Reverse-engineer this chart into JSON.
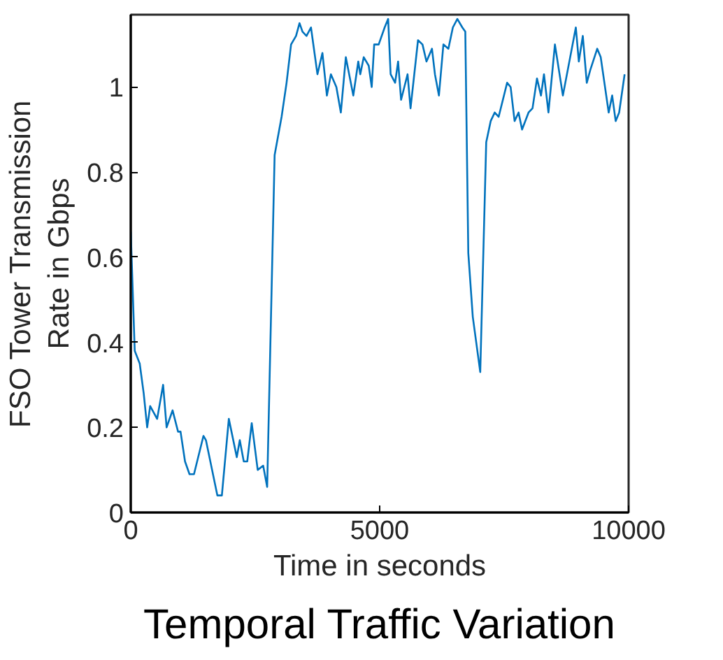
{
  "chart_data": {
    "type": "line",
    "title": "Temporal Traffic Variation",
    "xlabel": "Time in seconds",
    "ylabel": "FSO Tower Transmission Rate in Gbps",
    "x": [
      0,
      80,
      180,
      260,
      330,
      390,
      530,
      650,
      720,
      840,
      950,
      1000,
      1090,
      1180,
      1270,
      1460,
      1510,
      1740,
      1830,
      1970,
      2130,
      2190,
      2270,
      2340,
      2430,
      2550,
      2660,
      2740,
      2890,
      3030,
      3130,
      3220,
      3320,
      3390,
      3450,
      3530,
      3620,
      3750,
      3850,
      3940,
      4020,
      4130,
      4220,
      4320,
      4470,
      4570,
      4610,
      4680,
      4780,
      4840,
      4890,
      4980,
      5100,
      5170,
      5220,
      5310,
      5370,
      5430,
      5560,
      5620,
      5770,
      5860,
      5940,
      6050,
      6110,
      6190,
      6280,
      6380,
      6470,
      6560,
      6660,
      6720,
      6780,
      6870,
      7020,
      7140,
      7230,
      7310,
      7390,
      7560,
      7630,
      7710,
      7790,
      7860,
      7990,
      8070,
      8160,
      8240,
      8300,
      8390,
      8520,
      8680,
      8940,
      9000,
      9080,
      9160,
      9230,
      9370,
      9440,
      9600,
      9670,
      9740,
      9810,
      9920
    ],
    "series": [
      {
        "color": "#0072bd",
        "values": [
          0.66,
          0.38,
          0.35,
          0.28,
          0.2,
          0.25,
          0.22,
          0.3,
          0.2,
          0.24,
          0.19,
          0.19,
          0.12,
          0.09,
          0.09,
          0.18,
          0.17,
          0.04,
          0.04,
          0.22,
          0.13,
          0.17,
          0.12,
          0.12,
          0.21,
          0.1,
          0.11,
          0.06,
          0.84,
          0.93,
          1.01,
          1.1,
          1.12,
          1.15,
          1.13,
          1.12,
          1.14,
          1.03,
          1.08,
          0.98,
          1.03,
          1.0,
          0.94,
          1.07,
          0.98,
          1.06,
          1.03,
          1.07,
          1.05,
          1.0,
          1.1,
          1.1,
          1.14,
          1.16,
          1.03,
          1.01,
          1.06,
          0.97,
          1.03,
          0.95,
          1.11,
          1.1,
          1.06,
          1.09,
          1.03,
          0.98,
          1.1,
          1.09,
          1.14,
          1.16,
          1.14,
          1.13,
          0.61,
          0.46,
          0.33,
          0.87,
          0.92,
          0.94,
          0.93,
          1.01,
          1.0,
          0.92,
          0.94,
          0.9,
          0.94,
          0.95,
          1.02,
          0.98,
          1.03,
          0.94,
          1.1,
          0.98,
          1.14,
          1.06,
          1.12,
          1.01,
          1.04,
          1.09,
          1.07,
          0.94,
          0.98,
          0.92,
          0.94,
          1.03
        ]
      }
    ],
    "xlim": [
      0,
      10000
    ],
    "xticks": [
      0,
      5000,
      10000
    ],
    "ylim": [
      0,
      1.17
    ],
    "yticks": [
      0,
      0.2,
      0.4,
      0.6,
      0.8,
      1
    ],
    "grid": false,
    "line_style": "solid",
    "marker": "none"
  }
}
